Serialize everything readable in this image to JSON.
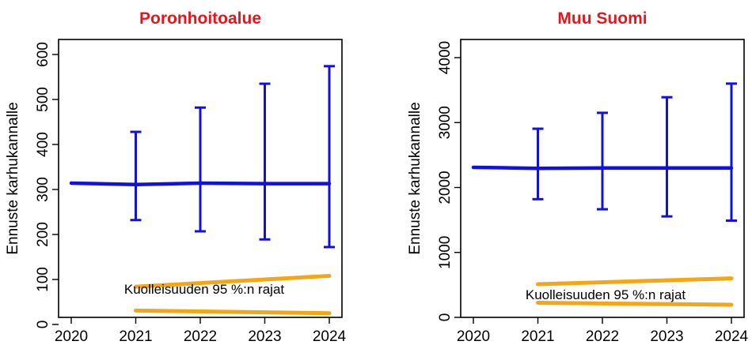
{
  "chart_data": [
    {
      "type": "line",
      "title": "Poronhoitoalue",
      "ylabel": "Ennuste karhukannalle",
      "xlabel": "",
      "x": [
        2020,
        2021,
        2022,
        2023,
        2024
      ],
      "xlim": [
        2020,
        2024
      ],
      "ylim": [
        0,
        600
      ],
      "yticks": [
        0,
        100,
        200,
        300,
        400,
        500,
        600
      ],
      "forecast": {
        "color": "#1010e0",
        "x": [
          2020,
          2021,
          2022,
          2023,
          2024
        ],
        "values": [
          314,
          311,
          314,
          313,
          313
        ],
        "error_bars": [
          {
            "x": 2021,
            "low": 232,
            "high": 428
          },
          {
            "x": 2022,
            "low": 207,
            "high": 482
          },
          {
            "x": 2023,
            "low": 189,
            "high": 535
          },
          {
            "x": 2024,
            "low": 172,
            "high": 574
          }
        ]
      },
      "mortality_limits": {
        "color": "#f5a615",
        "label": "Kuolleisuuden 95 %:n rajat",
        "upper": {
          "x": [
            2021,
            2024
          ],
          "values": [
            84,
            108
          ]
        },
        "lower": {
          "x": [
            2021,
            2024
          ],
          "values": [
            31,
            25
          ]
        }
      },
      "grid": false
    },
    {
      "type": "line",
      "title": "Muu Suomi",
      "ylabel": "Ennuste karhukannalle",
      "xlabel": "",
      "x": [
        2020,
        2021,
        2022,
        2023,
        2024
      ],
      "xlim": [
        2020,
        2024
      ],
      "ylim": [
        0,
        4000
      ],
      "yticks": [
        0,
        1000,
        2000,
        3000,
        4000
      ],
      "forecast": {
        "color": "#1010e0",
        "x": [
          2020,
          2021,
          2022,
          2023,
          2024
        ],
        "values": [
          2310,
          2295,
          2300,
          2300,
          2300
        ],
        "error_bars": [
          {
            "x": 2021,
            "low": 1820,
            "high": 2905
          },
          {
            "x": 2022,
            "low": 1665,
            "high": 3150
          },
          {
            "x": 2023,
            "low": 1555,
            "high": 3390
          },
          {
            "x": 2024,
            "low": 1490,
            "high": 3600
          }
        ]
      },
      "mortality_limits": {
        "color": "#f5a615",
        "label": "Kuolleisuuden 95 %:n rajat",
        "upper": {
          "x": [
            2021,
            2024
          ],
          "values": [
            510,
            600
          ]
        },
        "lower": {
          "x": [
            2021,
            2024
          ],
          "values": [
            225,
            195
          ]
        }
      },
      "grid": false
    }
  ]
}
